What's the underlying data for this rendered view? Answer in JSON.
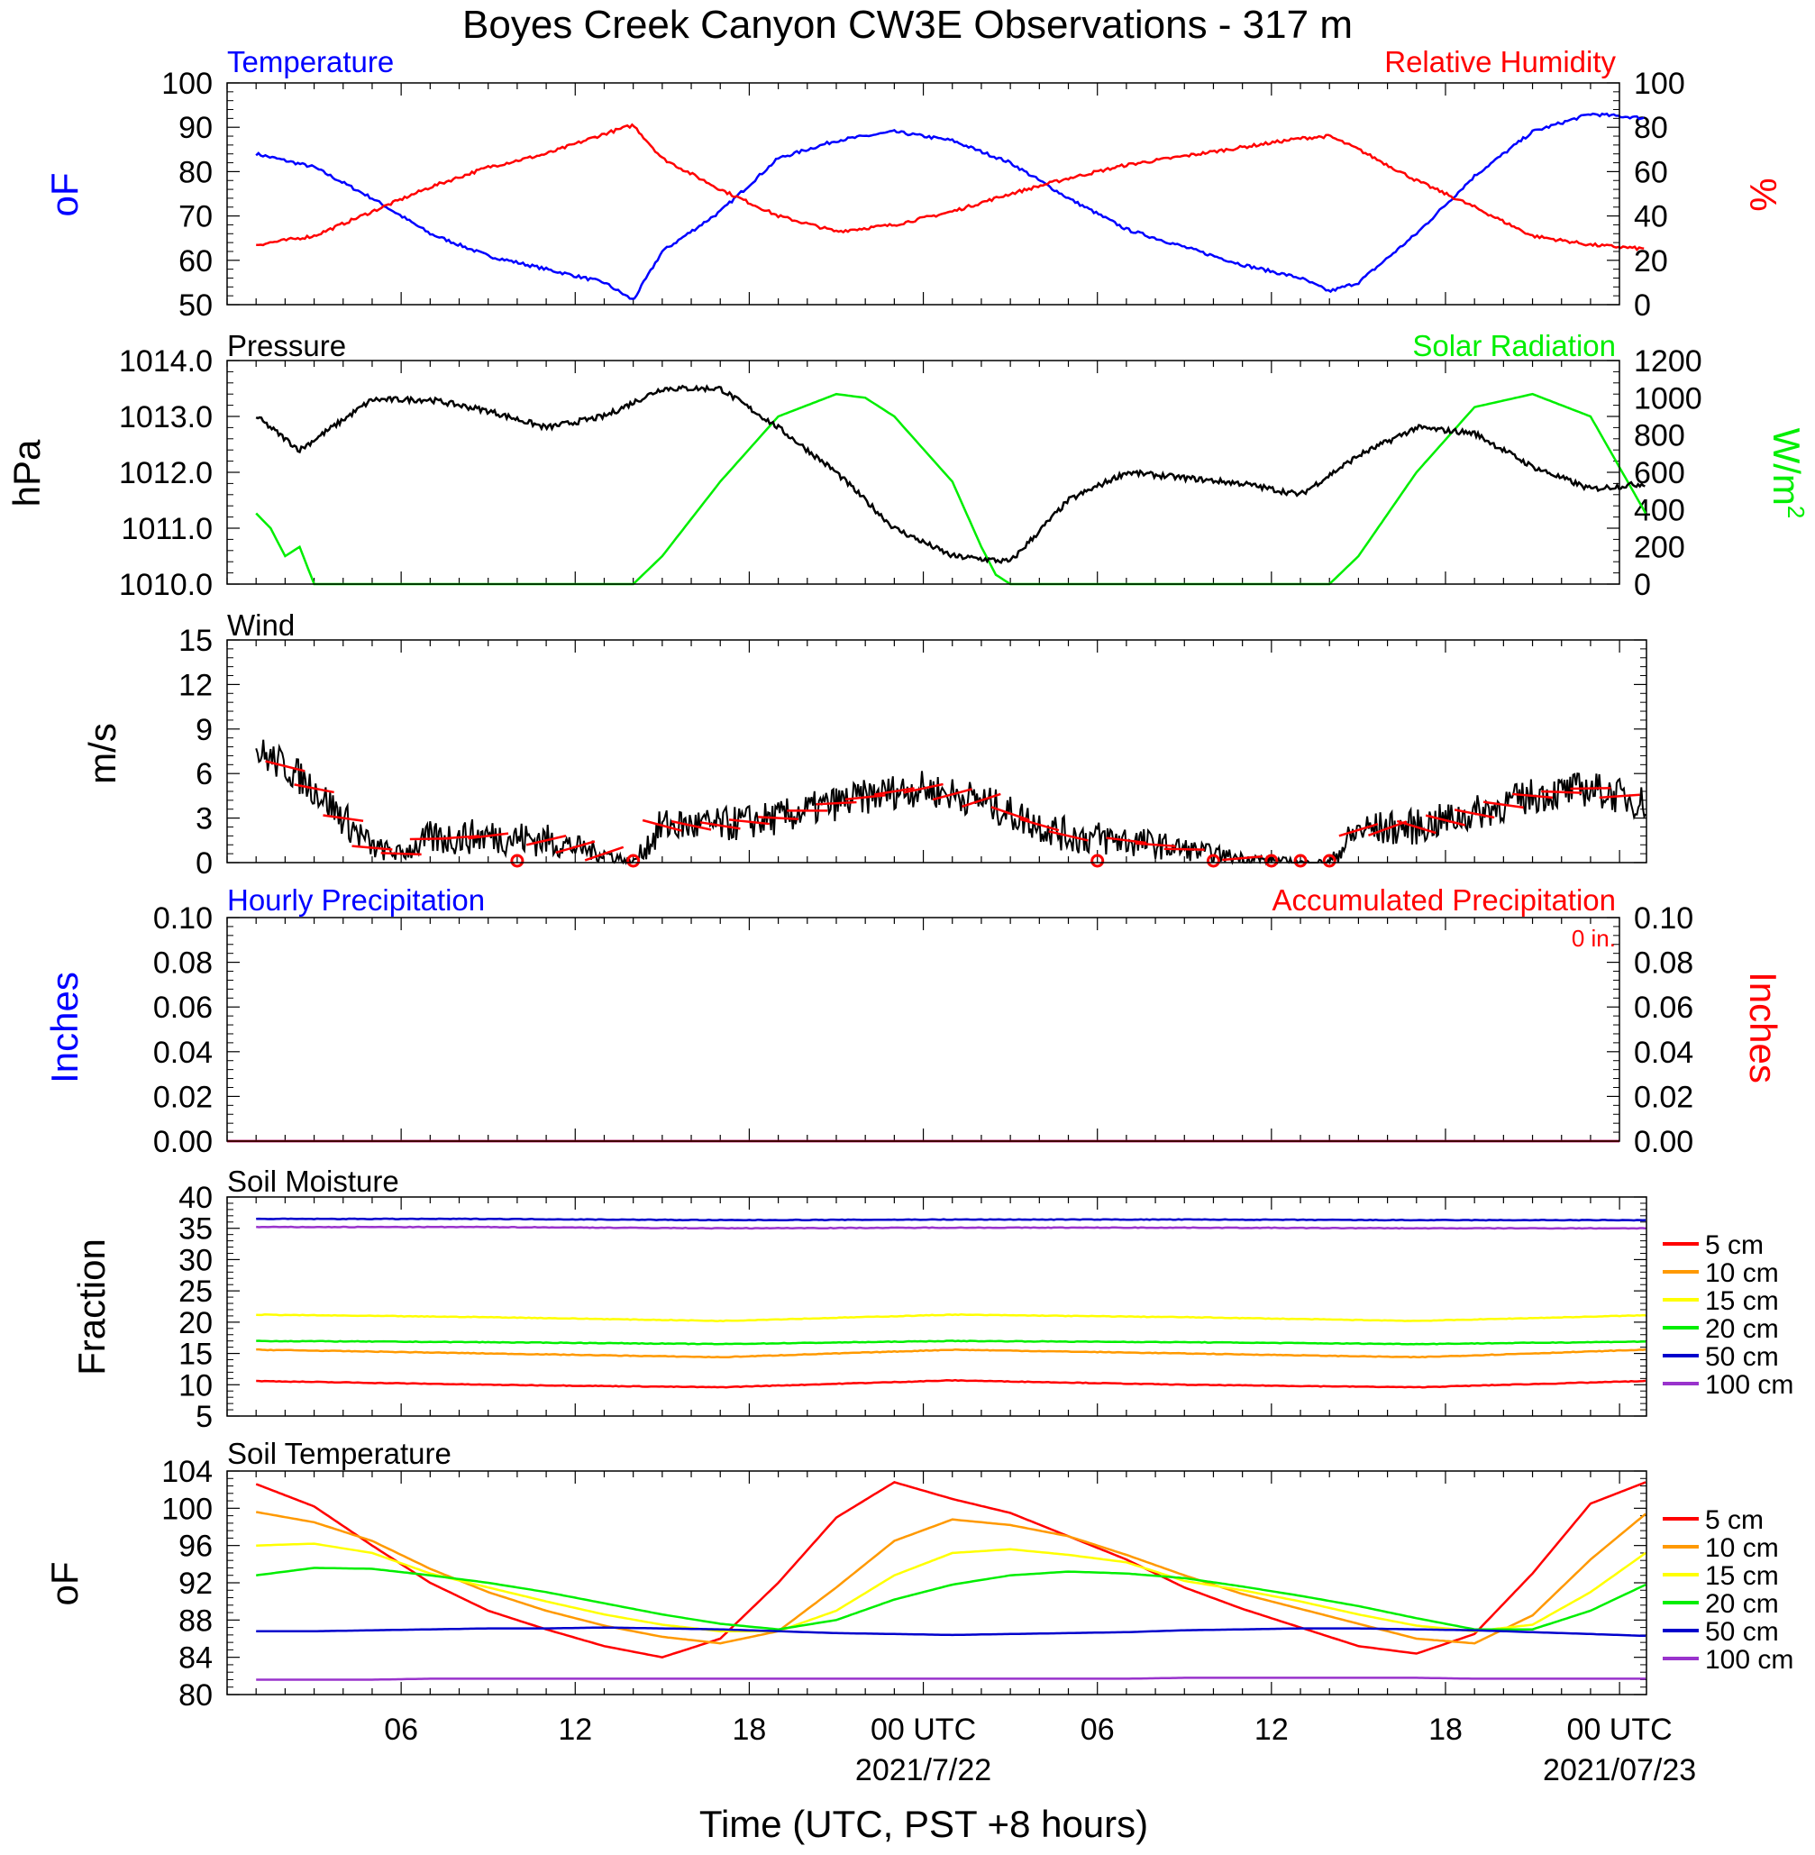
{
  "title": "Boyes Creek Canyon CW3E Observations - 317 m",
  "xlabel": "Time (UTC, PST +8 hours)",
  "x_ticks": [
    "06",
    "12",
    "18",
    "00 UTC",
    "06",
    "12",
    "18",
    "00 UTC"
  ],
  "x_dates": [
    "2021/7/22",
    "2021/07/23"
  ],
  "colors": {
    "temp": "#0000ff",
    "rh": "#ff0000",
    "pressure": "#000000",
    "solar": "#00ee00",
    "wind": "#000000",
    "barb": "#ff0000",
    "hourly": "#0000ff",
    "accum": "#ff0000"
  },
  "chart_data": [
    {
      "type": "line",
      "name": "temperature-rh",
      "title_left": "Temperature",
      "title_right": "Relative Humidity",
      "ylabel_left": "oF",
      "ylabel_right": "%",
      "ylim_left": [
        50,
        100
      ],
      "ylim_right": [
        0,
        100
      ],
      "yticks_left": [
        "100",
        "90",
        "80",
        "70",
        "60",
        "50"
      ],
      "yticks_right": [
        "100",
        "80",
        "60",
        "40",
        "20",
        "0"
      ],
      "x_hours": [
        1,
        3,
        5,
        7,
        9,
        11,
        13,
        14,
        15,
        17,
        19,
        21,
        23,
        25,
        27,
        29,
        31,
        33,
        35,
        37,
        38,
        39,
        41,
        43,
        45,
        47,
        49,
        48.9
      ],
      "temperature": [
        84,
        81,
        74,
        66,
        61,
        58,
        55,
        51,
        62,
        71,
        83,
        87,
        89,
        87,
        82,
        74,
        67,
        63,
        59,
        56,
        53,
        55,
        66,
        79,
        89,
        93,
        92,
        91
      ],
      "rh": [
        27,
        31,
        42,
        53,
        62,
        68,
        77,
        81,
        66,
        52,
        40,
        33,
        36,
        42,
        50,
        57,
        63,
        67,
        71,
        75,
        76,
        70,
        56,
        44,
        31,
        27,
        25,
        24
      ]
    },
    {
      "type": "line",
      "name": "pressure-solar",
      "title_left": "Pressure",
      "title_right": "Solar Radiation",
      "ylabel_left": "hPa",
      "ylabel_right": "W/m2",
      "ylim_left": [
        1010.0,
        1014.0
      ],
      "ylim_right": [
        0,
        1200
      ],
      "yticks_left": [
        "1014.0",
        "1013.0",
        "1012.0",
        "1011.0",
        "1010.0"
      ],
      "yticks_right": [
        "1200",
        "1000",
        "800",
        "600",
        "400",
        "200",
        "0"
      ],
      "x_hours": [
        1,
        2.5,
        5,
        7,
        9,
        11,
        13,
        15,
        17,
        19,
        21,
        23,
        25,
        27,
        29,
        31,
        33,
        35,
        37,
        39,
        41,
        43,
        45,
        47,
        48.9
      ],
      "pressure": [
        1013.0,
        1012.4,
        1013.3,
        1013.3,
        1013.1,
        1012.8,
        1013.0,
        1013.5,
        1013.5,
        1012.8,
        1012.0,
        1011.0,
        1010.5,
        1010.4,
        1011.5,
        1012.0,
        1011.9,
        1011.8,
        1011.6,
        1012.3,
        1012.8,
        1012.7,
        1012.1,
        1011.7,
        1011.8
      ],
      "solar_x": [
        1,
        1.5,
        2,
        2.5,
        3,
        14,
        15,
        17,
        19,
        21,
        22,
        23,
        25,
        26,
        26.5,
        27,
        38,
        39,
        41,
        43,
        45,
        47,
        48.9
      ],
      "solar": [
        380,
        300,
        150,
        200,
        0,
        0,
        150,
        550,
        900,
        1020,
        1000,
        900,
        550,
        200,
        50,
        0,
        0,
        150,
        600,
        950,
        1020,
        900,
        380
      ]
    },
    {
      "type": "line",
      "name": "wind",
      "title_left": "Wind",
      "ylabel_left": "m/s",
      "ylim_left": [
        0,
        15
      ],
      "yticks_left": [
        "15",
        "12",
        "9",
        "6",
        "3",
        "0"
      ],
      "x_hours": [
        1,
        2,
        3,
        4,
        5,
        6,
        7,
        9,
        11,
        13,
        14,
        15,
        17,
        19,
        21,
        23,
        24,
        25,
        26,
        27,
        29,
        31,
        33,
        35,
        37,
        38,
        39,
        41,
        43,
        45,
        47,
        48.9
      ],
      "wind": [
        7.5,
        6.5,
        5,
        3,
        1,
        0.6,
        1.6,
        1.8,
        1.5,
        0.6,
        0,
        2.5,
        2.5,
        3.0,
        4.0,
        4.8,
        5.0,
        4.6,
        4.2,
        3.3,
        1.8,
        1.5,
        0.9,
        0.3,
        0,
        0,
        2.2,
        2.4,
        3.3,
        4.5,
        5.0,
        4.0
      ],
      "calm_hours": [
        10,
        14,
        30,
        34,
        36,
        37,
        38
      ]
    },
    {
      "type": "line",
      "name": "precipitation",
      "title_left": "Hourly Precipitation",
      "title_right": "Accumulated Precipitation",
      "annotation": "0 in.",
      "ylabel_left": "Inches",
      "ylabel_right": "Inches",
      "ylim_left": [
        0,
        0.1
      ],
      "ylim_right": [
        0,
        0.1
      ],
      "yticks_left": [
        "0.10",
        "0.08",
        "0.06",
        "0.04",
        "0.02",
        "0.00"
      ],
      "yticks_right": [
        "0.10",
        "0.08",
        "0.06",
        "0.04",
        "0.02",
        "0.00"
      ],
      "hourly": 0,
      "accumulated": 0
    },
    {
      "type": "line",
      "name": "soil-moisture",
      "title_left": "Soil Moisture",
      "ylabel_left": "Fraction",
      "ylim_left": [
        5,
        40
      ],
      "yticks_left": [
        "40",
        "35",
        "30",
        "25",
        "20",
        "15",
        "10",
        "5"
      ],
      "x_hours": [
        1,
        9,
        17,
        25,
        33,
        41,
        48.9
      ],
      "legend": [
        "5 cm",
        "10 cm",
        "15 cm",
        "20 cm",
        "50 cm",
        "100 cm"
      ],
      "series_colors": [
        "#ff0000",
        "#ff9900",
        "#ffff00",
        "#00ee00",
        "#0000cc",
        "#9933cc"
      ],
      "series": [
        [
          10.6,
          10.0,
          9.6,
          10.7,
          10.0,
          9.6,
          10.6
        ],
        [
          15.6,
          15.0,
          14.4,
          15.6,
          15.0,
          14.4,
          15.6
        ],
        [
          21.2,
          20.8,
          20.2,
          21.2,
          20.8,
          20.2,
          21.1
        ],
        [
          17.0,
          16.8,
          16.5,
          17.0,
          16.8,
          16.5,
          16.9
        ],
        [
          36.5,
          36.5,
          36.3,
          36.4,
          36.4,
          36.3,
          36.3
        ],
        [
          35.2,
          35.2,
          35.0,
          35.1,
          35.1,
          35.0,
          35.0
        ]
      ]
    },
    {
      "type": "line",
      "name": "soil-temperature",
      "title_left": "Soil Temperature",
      "ylabel_left": "oF",
      "ylim_left": [
        80,
        104
      ],
      "yticks_left": [
        "104",
        "100",
        "96",
        "92",
        "88",
        "84",
        "80"
      ],
      "x_hours": [
        1,
        3,
        5,
        7,
        9,
        11,
        13,
        15,
        17,
        19,
        21,
        23,
        25,
        27,
        29,
        31,
        33,
        35,
        37,
        39,
        41,
        43,
        45,
        47,
        48.9
      ],
      "legend": [
        "5 cm",
        "10 cm",
        "15 cm",
        "20 cm",
        "50 cm",
        "100 cm"
      ],
      "series_colors": [
        "#ff0000",
        "#ff9900",
        "#ffff00",
        "#00ee00",
        "#0000cc",
        "#9933cc"
      ],
      "series": [
        [
          102.6,
          100.2,
          96.0,
          92.0,
          89.0,
          87.0,
          85.2,
          84.0,
          86.0,
          92.0,
          99.0,
          102.8,
          101.0,
          99.5,
          97.0,
          94.5,
          91.5,
          89.2,
          87.2,
          85.2,
          84.4,
          86.5,
          93.0,
          100.5,
          102.8
        ],
        [
          99.6,
          98.5,
          96.5,
          93.5,
          91.0,
          89.0,
          87.4,
          86.2,
          85.5,
          86.8,
          91.5,
          96.5,
          98.8,
          98.2,
          97.0,
          95.0,
          92.8,
          90.8,
          89.2,
          87.6,
          86.0,
          85.5,
          88.5,
          94.5,
          99.4
        ],
        [
          96.0,
          96.2,
          95.2,
          93.0,
          91.5,
          90.0,
          88.6,
          87.5,
          86.8,
          86.8,
          89.0,
          92.8,
          95.2,
          95.6,
          95.0,
          94.2,
          92.2,
          91.2,
          90.0,
          88.6,
          87.4,
          86.8,
          87.5,
          91.0,
          95.2
        ],
        [
          92.8,
          93.6,
          93.5,
          92.8,
          92.0,
          91.0,
          89.8,
          88.6,
          87.6,
          87.0,
          88.0,
          90.2,
          91.8,
          92.8,
          93.2,
          93.0,
          92.5,
          91.6,
          90.6,
          89.5,
          88.2,
          87.0,
          87.0,
          89.0,
          91.8
        ],
        [
          86.8,
          86.8,
          86.9,
          87.0,
          87.1,
          87.1,
          87.2,
          87.1,
          87.0,
          86.8,
          86.6,
          86.5,
          86.4,
          86.5,
          86.6,
          86.7,
          86.9,
          87.0,
          87.1,
          87.1,
          87.0,
          86.9,
          86.7,
          86.5,
          86.3
        ],
        [
          81.6,
          81.6,
          81.6,
          81.7,
          81.7,
          81.7,
          81.7,
          81.7,
          81.7,
          81.7,
          81.7,
          81.7,
          81.7,
          81.7,
          81.7,
          81.7,
          81.8,
          81.8,
          81.8,
          81.8,
          81.8,
          81.7,
          81.7,
          81.7,
          81.7
        ]
      ]
    }
  ]
}
